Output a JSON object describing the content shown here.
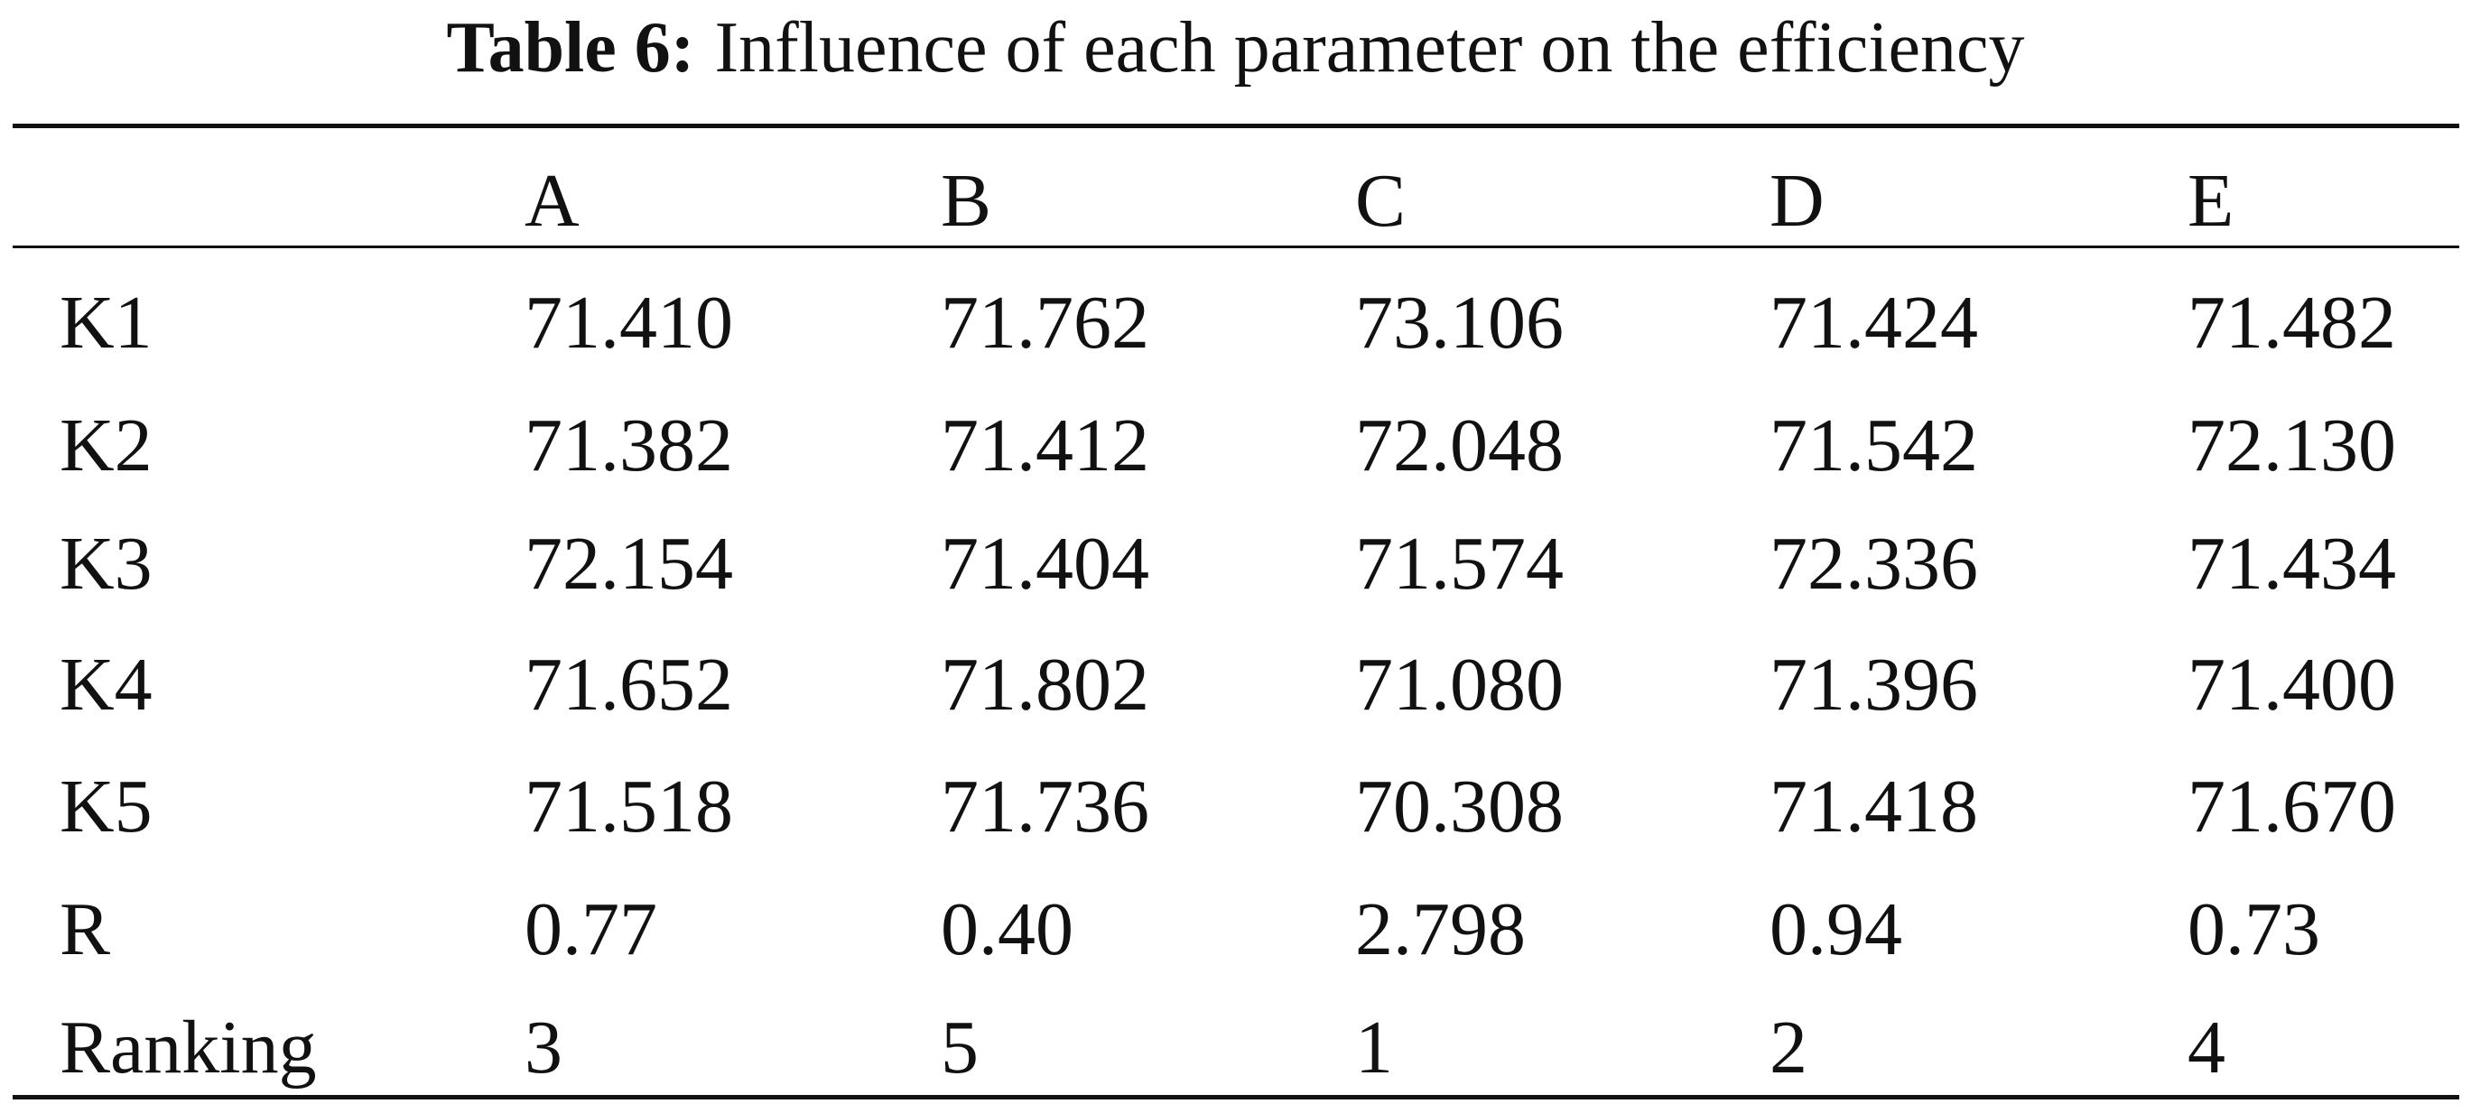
{
  "table": {
    "caption_label": "Table 6:",
    "caption_text": "Influence of each parameter on the efficiency",
    "header": [
      "A",
      "B",
      "C",
      "D",
      "E"
    ],
    "rows": [
      [
        "K1",
        "71.410",
        "71.762",
        "73.106",
        "71.424",
        "71.482"
      ],
      [
        "K2",
        "71.382",
        "71.412",
        "72.048",
        "71.542",
        "72.130"
      ],
      [
        "K3",
        "72.154",
        "71.404",
        "71.574",
        "72.336",
        "71.434"
      ],
      [
        "K4",
        "71.652",
        "71.802",
        "71.080",
        "71.396",
        "71.400"
      ],
      [
        "K5",
        "71.518",
        "71.736",
        "70.308",
        "71.418",
        "71.670"
      ],
      [
        "R",
        "0.77",
        "0.40",
        "2.798",
        "0.94",
        "0.73"
      ],
      [
        "Ranking",
        "3",
        "5",
        "1",
        "2",
        "4"
      ]
    ]
  }
}
